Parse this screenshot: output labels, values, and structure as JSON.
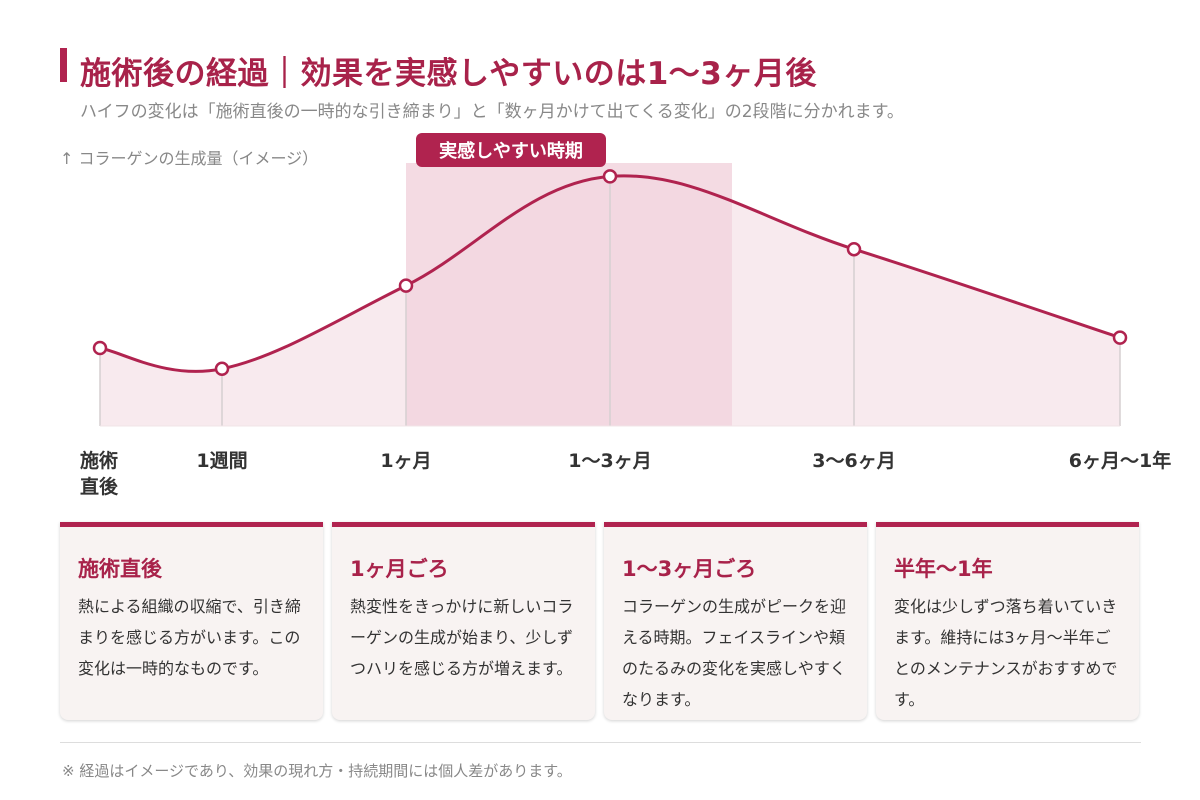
{
  "header": {
    "title": "施術後の経過｜効果を実感しやすいのは1〜3ヶ月後",
    "subtitle": "ハイフの変化は「施術直後の一時的な引き締まり」と「数ヶ月かけて出てくる変化」の2段階に分かれます。"
  },
  "chart_data": {
    "type": "line",
    "ylabel": "↑ コラーゲンの生成量（イメージ）",
    "highlight_label": "実感しやすい時期",
    "categories": [
      "施術\n直後",
      "1週間",
      "1ヶ月",
      "1〜3ヶ月",
      "3〜6ヶ月",
      "6ヶ月〜1年"
    ],
    "values": [
      30,
      22,
      54,
      96,
      68,
      34
    ],
    "ylim": [
      0,
      100
    ],
    "grid": false,
    "colors": {
      "line": "#b0234f",
      "area": "#f8eaee",
      "highlight": "#f2d5de",
      "label_bg": "#b0234f"
    }
  },
  "cards": [
    {
      "title": "施術直後",
      "body": "熱による組織の収縮で、引き締まりを感じる方がいます。この変化は一時的なものです。"
    },
    {
      "title": "1ヶ月ごろ",
      "body": "熱変性をきっかけに新しいコラーゲンの生成が始まり、少しずつハリを感じる方が増えます。"
    },
    {
      "title": "1〜3ヶ月ごろ",
      "body": "コラーゲンの生成がピークを迎える時期。フェイスラインや頬のたるみの変化を実感しやすくなります。"
    },
    {
      "title": "半年〜1年",
      "body": "変化は少しずつ落ち着いていきます。維持には3ヶ月〜半年ごとのメンテナンスがおすすめです。"
    }
  ],
  "footnote": "※ 経過はイメージであり、効果の現れ方・持続期間には個人差があります。"
}
